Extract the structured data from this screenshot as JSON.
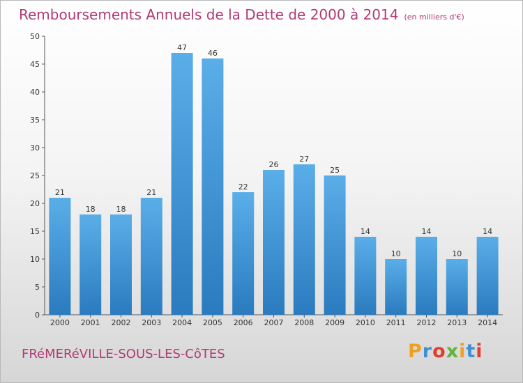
{
  "header": {
    "title": "Remboursements Annuels de la Dette de 2000 à 2014",
    "subtitle": "(en milliers d'€)"
  },
  "footer": {
    "commune": "FRéMERéVILLE-SOUS-LES-CôTES",
    "brand": "Proxiti",
    "brand_colors": [
      "#f0a020",
      "#3e8fd8",
      "#e23d2d",
      "#62b33a",
      "#f0a020",
      "#3e8fd8",
      "#e23d2d"
    ]
  },
  "colors": {
    "title": "#b03a74",
    "bar_top": "#5aaee8",
    "bar_bottom": "#2a7bbf"
  },
  "chart_data": {
    "type": "bar",
    "title": "Remboursements Annuels de la Dette de 2000 à 2014",
    "subtitle": "(en milliers d'€)",
    "categories": [
      "2000",
      "2001",
      "2002",
      "2003",
      "2004",
      "2005",
      "2006",
      "2007",
      "2008",
      "2009",
      "2010",
      "2011",
      "2012",
      "2013",
      "2014"
    ],
    "values": [
      21,
      18,
      18,
      21,
      47,
      46,
      22,
      26,
      27,
      25,
      14,
      10,
      14,
      10,
      14
    ],
    "ylim": [
      0,
      50
    ],
    "yticks": [
      0,
      5,
      10,
      15,
      20,
      25,
      30,
      35,
      40,
      45,
      50
    ],
    "grid": false,
    "legend": "none"
  }
}
